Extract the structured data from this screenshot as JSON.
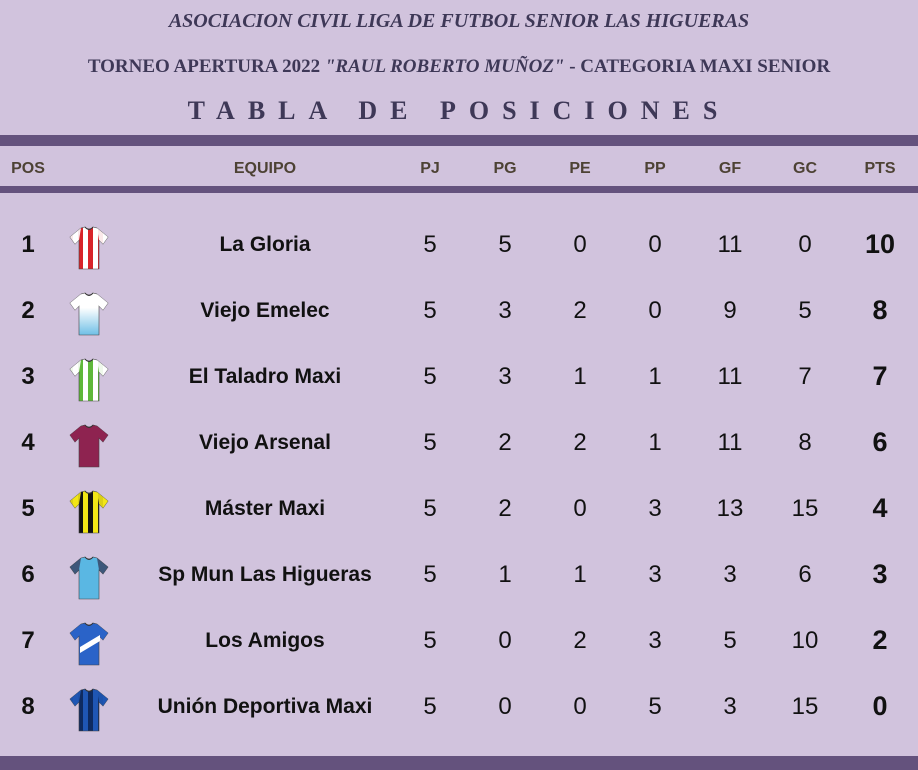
{
  "header": {
    "line1": "ASOCIACION CIVIL LIGA DE FUTBOL SENIOR LAS HIGUERAS",
    "line2_a": "TORNEO APERTURA 2022 ",
    "line2_b": "\"RAUL ROBERTO MUÑOZ\"",
    "line2_c": " - CATEGORIA MAXI SENIOR",
    "line3": "TABLA DE POSICIONES"
  },
  "columns": {
    "pos": "POS",
    "team": "EQUIPO",
    "pj": "PJ",
    "pg": "PG",
    "pe": "PE",
    "pp": "PP",
    "gf": "GF",
    "gc": "GC",
    "pts": "PTS"
  },
  "rows": [
    {
      "pos": "1",
      "team": "La Gloria",
      "pj": "5",
      "pg": "5",
      "pe": "0",
      "pp": "0",
      "gf": "11",
      "gc": "0",
      "pts": "10",
      "jersey": {
        "icon": "jersey-icon",
        "pattern": "stripes",
        "c1": "#ffffff",
        "c2": "#d8232a",
        "sleeve": "#ffffff"
      }
    },
    {
      "pos": "2",
      "team": "Viejo Emelec",
      "pj": "5",
      "pg": "3",
      "pe": "2",
      "pp": "0",
      "gf": "9",
      "gc": "5",
      "pts": "8",
      "jersey": {
        "icon": "jersey-icon",
        "pattern": "fade",
        "c1": "#ffffff",
        "c2": "#6fbfe6",
        "sleeve": "#ffffff"
      }
    },
    {
      "pos": "3",
      "team": "El Taladro Maxi",
      "pj": "5",
      "pg": "3",
      "pe": "1",
      "pp": "1",
      "gf": "11",
      "gc": "7",
      "pts": "7",
      "jersey": {
        "icon": "jersey-icon",
        "pattern": "stripes",
        "c1": "#ffffff",
        "c2": "#5fb83a",
        "sleeve": "#ffffff"
      }
    },
    {
      "pos": "4",
      "team": "Viejo Arsenal",
      "pj": "5",
      "pg": "2",
      "pe": "2",
      "pp": "1",
      "gf": "11",
      "gc": "8",
      "pts": "6",
      "jersey": {
        "icon": "jersey-icon",
        "pattern": "solid",
        "c1": "#8e2350",
        "c2": "#8e2350",
        "sleeve": "#8e2350"
      }
    },
    {
      "pos": "5",
      "team": "Máster Maxi",
      "pj": "5",
      "pg": "2",
      "pe": "0",
      "pp": "3",
      "gf": "13",
      "gc": "15",
      "pts": "4",
      "jersey": {
        "icon": "jersey-icon",
        "pattern": "stripes",
        "c1": "#f2e616",
        "c2": "#111111",
        "sleeve": "#f2e616"
      }
    },
    {
      "pos": "6",
      "team": "Sp Mun Las Higueras",
      "pj": "5",
      "pg": "1",
      "pe": "1",
      "pp": "3",
      "gf": "3",
      "gc": "6",
      "pts": "3",
      "jersey": {
        "icon": "jersey-icon",
        "pattern": "solid",
        "c1": "#5ab7e3",
        "c2": "#5ab7e3",
        "sleeve": "#3a4c6e"
      }
    },
    {
      "pos": "7",
      "team": "Los Amigos",
      "pj": "5",
      "pg": "0",
      "pe": "2",
      "pp": "3",
      "gf": "5",
      "gc": "10",
      "pts": "2",
      "jersey": {
        "icon": "jersey-icon",
        "pattern": "band",
        "c1": "#2a63c8",
        "c2": "#ffffff",
        "sleeve": "#2a63c8"
      }
    },
    {
      "pos": "8",
      "team": "Unión Deportiva Maxi",
      "pj": "5",
      "pg": "0",
      "pe": "0",
      "pp": "5",
      "gf": "3",
      "gc": "15",
      "pts": "0",
      "jersey": {
        "icon": "jersey-icon",
        "pattern": "stripes",
        "c1": "#1f56b4",
        "c2": "#0e2a60",
        "sleeve": "#1f56b4"
      }
    }
  ]
}
